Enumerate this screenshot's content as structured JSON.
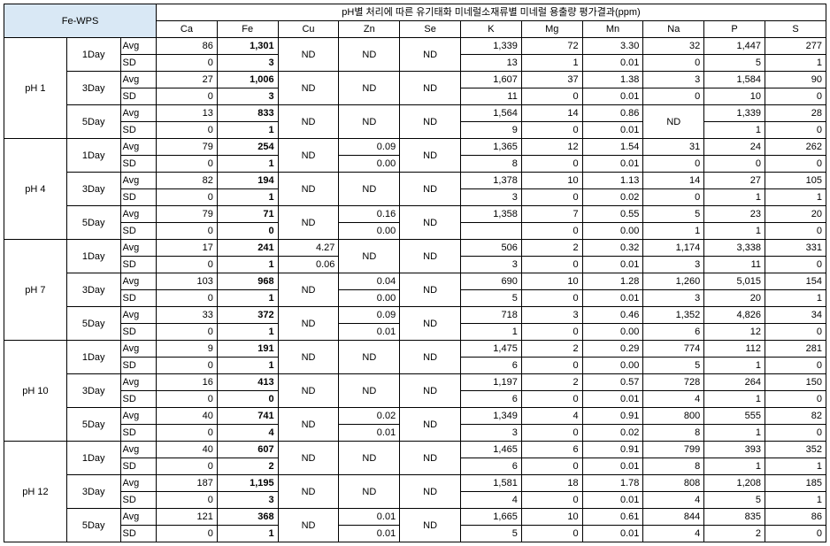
{
  "header": {
    "fe_wps": "Fe-WPS",
    "main": "pH별 처리에 따른 유기태화 미네럴소재류별  미네럴 용출량 평가결과(ppm)",
    "cols": [
      "Ca",
      "Fe",
      "Cu",
      "Zn",
      "Se",
      "K",
      "Mg",
      "Mn",
      "Na",
      "P",
      "S"
    ]
  },
  "ph_groups": [
    {
      "label": "pH 1",
      "days": [
        {
          "day": "1Day",
          "rows": [
            {
              "stat": "Avg",
              "Ca": "86",
              "Fe": "1,301",
              "Cu": "ND",
              "Zn": "ND",
              "Se": "ND",
              "K": "1,339",
              "Mg": "72",
              "Mn": "3.30",
              "Na": "32",
              "P": "1,447",
              "S": "277",
              "Cu_rs": 2,
              "Zn_rs": 2,
              "Se_rs": 2
            },
            {
              "stat": "SD",
              "Ca": "0",
              "Fe": "3",
              "K": "13",
              "Mg": "1",
              "Mn": "0.01",
              "Na": "0",
              "P": "5",
              "S": "1"
            }
          ]
        },
        {
          "day": "3Day",
          "rows": [
            {
              "stat": "Avg",
              "Ca": "27",
              "Fe": "1,006",
              "Cu": "ND",
              "Zn": "ND",
              "Se": "ND",
              "K": "1,607",
              "Mg": "37",
              "Mn": "1.38",
              "Na": "3",
              "P": "1,584",
              "S": "90",
              "Cu_rs": 2,
              "Zn_rs": 2,
              "Se_rs": 2
            },
            {
              "stat": "SD",
              "Ca": "0",
              "Fe": "3",
              "K": "11",
              "Mg": "0",
              "Mn": "0.01",
              "Na": "0",
              "P": "10",
              "S": "0"
            }
          ]
        },
        {
          "day": "5Day",
          "rows": [
            {
              "stat": "Avg",
              "Ca": "13",
              "Fe": "833",
              "Cu": "ND",
              "Zn": "ND",
              "Se": "ND",
              "K": "1,564",
              "Mg": "14",
              "Mn": "0.86",
              "Na": "ND",
              "P": "1,339",
              "S": "28",
              "Cu_rs": 2,
              "Zn_rs": 2,
              "Se_rs": 2,
              "Na_rs": 2
            },
            {
              "stat": "SD",
              "Ca": "0",
              "Fe": "1",
              "K": "9",
              "Mg": "0",
              "Mn": "0.01",
              "P": "1",
              "S": "0"
            }
          ]
        }
      ]
    },
    {
      "label": "pH 4",
      "days": [
        {
          "day": "1Day",
          "rows": [
            {
              "stat": "Avg",
              "Ca": "79",
              "Fe": "254",
              "Cu": "ND",
              "Zn": "0.09",
              "Se": "ND",
              "K": "1,365",
              "Mg": "12",
              "Mn": "1.54",
              "Na": "31",
              "P": "24",
              "S": "262",
              "Cu_rs": 2,
              "Se_rs": 2
            },
            {
              "stat": "SD",
              "Ca": "0",
              "Fe": "1",
              "Zn": "0.00",
              "K": "8",
              "Mg": "0",
              "Mn": "0.01",
              "Na": "0",
              "P": "0",
              "S": "0"
            }
          ]
        },
        {
          "day": "3Day",
          "rows": [
            {
              "stat": "Avg",
              "Ca": "82",
              "Fe": "194",
              "Cu": "ND",
              "Zn": "ND",
              "Se": "ND",
              "K": "1,378",
              "Mg": "10",
              "Mn": "1.13",
              "Na": "14",
              "P": "27",
              "S": "105",
              "Cu_rs": 2,
              "Zn_rs": 2,
              "Se_rs": 2
            },
            {
              "stat": "SD",
              "Ca": "0",
              "Fe": "1",
              "K": "3",
              "Mg": "0",
              "Mn": "0.02",
              "Na": "0",
              "P": "1",
              "S": "1"
            }
          ]
        },
        {
          "day": "5Day",
          "rows": [
            {
              "stat": "Avg",
              "Ca": "79",
              "Fe": "71",
              "Cu": "ND",
              "Zn": "0.16",
              "Se": "ND",
              "K": "1,358",
              "Mg": "7",
              "Mn": "0.55",
              "Na": "5",
              "P": "23",
              "S": "20",
              "Cu_rs": 2,
              "Se_rs": 2
            },
            {
              "stat": "SD",
              "Ca": "0",
              "Fe": "0",
              "Zn": "0.00",
              "K": "",
              "Mg": "0",
              "Mn": "0.00",
              "Na": "1",
              "P": "1",
              "S": "0"
            }
          ]
        }
      ]
    },
    {
      "label": "pH 7",
      "days": [
        {
          "day": "1Day",
          "rows": [
            {
              "stat": "Avg",
              "Ca": "17",
              "Fe": "241",
              "Cu": "4.27",
              "Zn": "ND",
              "Se": "ND",
              "K": "506",
              "Mg": "2",
              "Mn": "0.32",
              "Na": "1,174",
              "P": "3,338",
              "S": "331",
              "Zn_rs": 2,
              "Se_rs": 2
            },
            {
              "stat": "SD",
              "Ca": "0",
              "Fe": "1",
              "Cu": "0.06",
              "K": "3",
              "Mg": "0",
              "Mn": "0.01",
              "Na": "3",
              "P": "11",
              "S": "0"
            }
          ]
        },
        {
          "day": "3Day",
          "rows": [
            {
              "stat": "Avg",
              "Ca": "103",
              "Fe": "968",
              "Cu": "ND",
              "Zn": "0.04",
              "Se": "ND",
              "K": "690",
              "Mg": "10",
              "Mn": "1.28",
              "Na": "1,260",
              "P": "5,015",
              "S": "154",
              "Cu_rs": 2,
              "Se_rs": 2
            },
            {
              "stat": "SD",
              "Ca": "0",
              "Fe": "1",
              "Zn": "0.00",
              "K": "5",
              "Mg": "0",
              "Mn": "0.01",
              "Na": "3",
              "P": "20",
              "S": "1"
            }
          ]
        },
        {
          "day": "5Day",
          "rows": [
            {
              "stat": "Avg",
              "Ca": "33",
              "Fe": "372",
              "Cu": "ND",
              "Zn": "0.09",
              "Se": "ND",
              "K": "718",
              "Mg": "3",
              "Mn": "0.46",
              "Na": "1,352",
              "P": "4,826",
              "S": "34",
              "Cu_rs": 2,
              "Se_rs": 2
            },
            {
              "stat": "SD",
              "Ca": "0",
              "Fe": "1",
              "Zn": "0.01",
              "K": "1",
              "Mg": "0",
              "Mn": "0.00",
              "Na": "6",
              "P": "12",
              "S": "0"
            }
          ]
        }
      ]
    },
    {
      "label": "pH 10",
      "days": [
        {
          "day": "1Day",
          "rows": [
            {
              "stat": "Avg",
              "Ca": "9",
              "Fe": "191",
              "Cu": "ND",
              "Zn": "ND",
              "Se": "ND",
              "K": "1,475",
              "Mg": "2",
              "Mn": "0.29",
              "Na": "774",
              "P": "112",
              "S": "281",
              "Cu_rs": 2,
              "Zn_rs": 2,
              "Se_rs": 2
            },
            {
              "stat": "SD",
              "Ca": "0",
              "Fe": "1",
              "K": "6",
              "Mg": "0",
              "Mn": "0.00",
              "Na": "5",
              "P": "1",
              "S": "0"
            }
          ]
        },
        {
          "day": "3Day",
          "rows": [
            {
              "stat": "Avg",
              "Ca": "16",
              "Fe": "413",
              "Cu": "ND",
              "Zn": "ND",
              "Se": "ND",
              "K": "1,197",
              "Mg": "2",
              "Mn": "0.57",
              "Na": "728",
              "P": "264",
              "S": "150",
              "Cu_rs": 2,
              "Zn_rs": 2,
              "Se_rs": 2
            },
            {
              "stat": "SD",
              "Ca": "0",
              "Fe": "0",
              "K": "6",
              "Mg": "0",
              "Mn": "0.01",
              "Na": "4",
              "P": "1",
              "S": "0"
            }
          ]
        },
        {
          "day": "5Day",
          "rows": [
            {
              "stat": "Avg",
              "Ca": "40",
              "Fe": "741",
              "Cu": "ND",
              "Zn": "0.02",
              "Se": "ND",
              "K": "1,349",
              "Mg": "4",
              "Mn": "0.91",
              "Na": "800",
              "P": "555",
              "S": "82",
              "Cu_rs": 2,
              "Se_rs": 2
            },
            {
              "stat": "SD",
              "Ca": "0",
              "Fe": "4",
              "Zn": "0.01",
              "K": "3",
              "Mg": "0",
              "Mn": "0.02",
              "Na": "8",
              "P": "1",
              "S": "0"
            }
          ]
        }
      ]
    },
    {
      "label": "pH 12",
      "days": [
        {
          "day": "1Day",
          "rows": [
            {
              "stat": "Avg",
              "Ca": "40",
              "Fe": "607",
              "Cu": "ND",
              "Zn": "ND",
              "Se": "ND",
              "K": "1,465",
              "Mg": "6",
              "Mn": "0.91",
              "Na": "799",
              "P": "393",
              "S": "352",
              "Cu_rs": 2,
              "Zn_rs": 2,
              "Se_rs": 2
            },
            {
              "stat": "SD",
              "Ca": "0",
              "Fe": "2",
              "K": "6",
              "Mg": "0",
              "Mn": "0.01",
              "Na": "8",
              "P": "1",
              "S": "1"
            }
          ]
        },
        {
          "day": "3Day",
          "rows": [
            {
              "stat": "Avg",
              "Ca": "187",
              "Fe": "1,195",
              "Cu": "ND",
              "Zn": "ND",
              "Se": "ND",
              "K": "1,581",
              "Mg": "18",
              "Mn": "1.78",
              "Na": "808",
              "P": "1,208",
              "S": "185",
              "Cu_rs": 2,
              "Zn_rs": 2,
              "Se_rs": 2
            },
            {
              "stat": "SD",
              "Ca": "0",
              "Fe": "3",
              "K": "4",
              "Mg": "0",
              "Mn": "0.01",
              "Na": "4",
              "P": "5",
              "S": "1"
            }
          ]
        },
        {
          "day": "5Day",
          "rows": [
            {
              "stat": "Avg",
              "Ca": "121",
              "Fe": "368",
              "Cu": "ND",
              "Zn": "0.01",
              "Se": "ND",
              "K": "1,665",
              "Mg": "10",
              "Mn": "0.61",
              "Na": "844",
              "P": "835",
              "S": "86",
              "Cu_rs": 2,
              "Se_rs": 2
            },
            {
              "stat": "SD",
              "Ca": "0",
              "Fe": "1",
              "Zn": "0.01",
              "K": "5",
              "Mg": "0",
              "Mn": "0.01",
              "Na": "4",
              "P": "2",
              "S": "0"
            }
          ]
        }
      ]
    }
  ]
}
